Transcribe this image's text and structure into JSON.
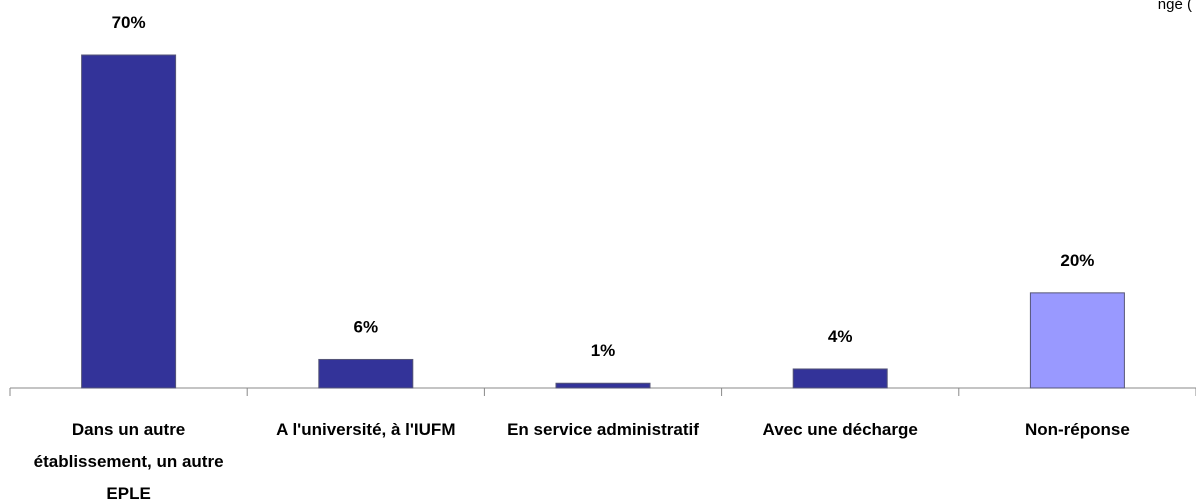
{
  "chart_data": {
    "type": "bar",
    "annotation": "ngé (",
    "categories": [
      "Dans un autre établissement, un autre EPLE",
      "A l'université, à l'IUFM",
      "En service administratif",
      "Avec une décharge",
      "Non-réponse"
    ],
    "values": [
      70,
      6,
      1,
      4,
      20
    ],
    "value_labels": [
      "70%",
      "6%",
      "1%",
      "4%",
      "20%"
    ],
    "colors": [
      "#333399",
      "#333399",
      "#333399",
      "#333399",
      "#9999ff"
    ],
    "ylim": [
      0,
      70
    ]
  }
}
